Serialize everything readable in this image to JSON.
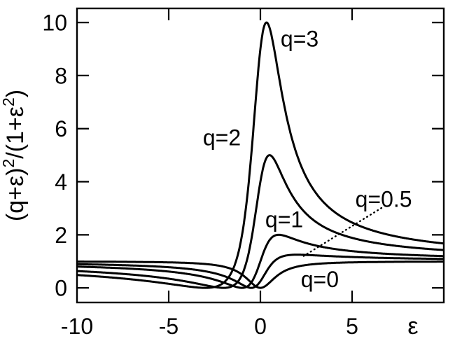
{
  "figure": {
    "background": "#ffffff",
    "ink": "#000000"
  },
  "chart_data": {
    "type": "line",
    "title": "",
    "xlabel": "ε",
    "ylabel": "(q+ε)²/(1+ε²)",
    "ylabel_parts": [
      {
        "text": "(q+ε)",
        "sup": false
      },
      {
        "text": "2",
        "sup": true
      },
      {
        "text": "/(1+ε",
        "sup": false
      },
      {
        "text": "2",
        "sup": true
      },
      {
        "text": ")",
        "sup": false
      }
    ],
    "formula": "F(ε) = (q+ε)² / (1+ε²)",
    "xlim": [
      -10,
      10
    ],
    "ylim": [
      -0.55,
      10.53
    ],
    "x_ticks": [
      -10,
      -5,
      0,
      5
    ],
    "x_tick_labels": [
      "-10",
      "-5",
      "0",
      "5"
    ],
    "y_ticks": [
      0,
      2,
      4,
      6,
      8,
      10
    ],
    "y_tick_labels": [
      "0",
      "2",
      "4",
      "6",
      "8",
      "10"
    ],
    "grid": false,
    "legend": "inline-curve-labels",
    "line_color": "#000000",
    "series": [
      {
        "label": "q=0",
        "q": 0,
        "zero_at_eps": 0,
        "asymptote": 1,
        "label_pos": [
          3.24,
          0.34
        ]
      },
      {
        "label": "q=0.5",
        "q": 0.5,
        "zero_at_eps": -0.5,
        "peak_eps": 2,
        "peak_value": 1.25,
        "label_pos": [
          6.72,
          3.35
        ]
      },
      {
        "label": "q=1",
        "q": 1,
        "zero_at_eps": -1,
        "peak_eps": 1,
        "peak_value": 2,
        "label_pos": [
          1.3,
          2.59
        ]
      },
      {
        "label": "q=2",
        "q": 2,
        "zero_at_eps": -2,
        "peak_eps": 0.5,
        "peak_value": 5,
        "label_pos": [
          -2.1,
          5.67
        ]
      },
      {
        "label": "q=3",
        "q": 3,
        "zero_at_eps": -3,
        "peak_eps": 0.3333,
        "peak_value": 10,
        "label_pos": [
          2.14,
          9.39
        ]
      }
    ],
    "annotations": [
      {
        "name": "q05-leader-line",
        "style": "dotted",
        "points_to_series": "q=0.5",
        "from": [
          6.6,
          3.01
        ],
        "to": [
          2.33,
          1.19
        ]
      }
    ]
  }
}
